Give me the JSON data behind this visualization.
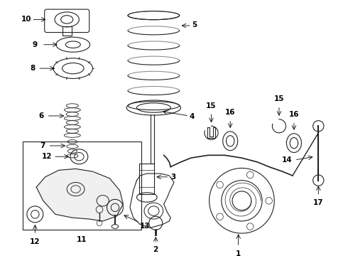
{
  "background_color": "#ffffff",
  "line_color": "#222222",
  "label_fontsize": 7.5,
  "fig_width": 4.9,
  "fig_height": 3.6,
  "dpi": 100
}
